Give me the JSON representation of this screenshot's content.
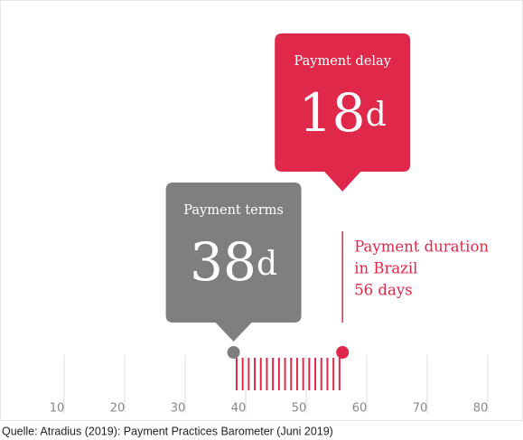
{
  "chart_data": {
    "type": "duration",
    "terms": {
      "label": "Payment terms",
      "value": 38,
      "value_label": "38d",
      "color": "#7f7f7f"
    },
    "delay": {
      "label": "Payment delay",
      "value": 18,
      "value_label": "18d",
      "color": "#e0294a"
    },
    "duration": {
      "lines": [
        "Payment duration",
        "in Brazil",
        "56 days"
      ],
      "value": 56,
      "color": "#e0294a"
    },
    "xlim": [
      0,
      85
    ],
    "xticks": [
      10,
      20,
      30,
      40,
      50,
      60,
      70,
      80
    ],
    "source": "Quelle: Atradius (2019): Payment Practices Barometer (Juni 2019)"
  }
}
